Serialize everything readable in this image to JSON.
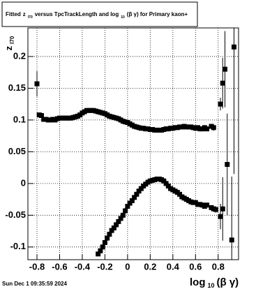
{
  "chart_data": {
    "type": "scatter",
    "title_parts": [
      "Fitted",
      "z",
      "I70",
      "versus TpcTrackLength and log",
      "10",
      "(β γ) for Primary kaon+"
    ],
    "ylabel_parts": [
      "z",
      "I70"
    ],
    "xlabel_parts": [
      "log",
      "10",
      "(β γ)"
    ],
    "footer": "Sun Dec  1 09:35:59 2024",
    "xlim": [
      -0.88,
      0.98
    ],
    "ylim": [
      -0.12,
      0.245
    ],
    "xticks": [
      -0.8,
      -0.6,
      -0.4,
      -0.2,
      0,
      0.2,
      0.4,
      0.6,
      0.8
    ],
    "yticks": [
      -0.1,
      -0.05,
      0,
      0.05,
      0.1,
      0.15,
      0.2
    ],
    "grid": true,
    "series": [
      {
        "color": "#000000",
        "x": [
          -0.8,
          -0.78,
          -0.76,
          -0.74,
          -0.72,
          -0.7,
          -0.68,
          -0.66,
          -0.64,
          -0.62,
          -0.6,
          -0.58,
          -0.56,
          -0.54,
          -0.52,
          -0.5,
          -0.48,
          -0.46,
          -0.44,
          -0.42,
          -0.4,
          -0.38,
          -0.36,
          -0.34,
          -0.32,
          -0.3,
          -0.28,
          -0.26,
          -0.24,
          -0.22,
          -0.2,
          -0.18,
          -0.16,
          -0.14,
          -0.12,
          -0.1,
          -0.08,
          -0.06,
          -0.04,
          -0.02,
          0,
          0.02,
          0.04,
          0.06,
          0.08,
          0.1,
          0.12,
          0.14,
          0.16,
          0.18,
          0.2,
          0.22,
          0.24,
          0.26,
          0.28,
          0.3,
          0.32,
          0.34,
          0.36,
          0.38,
          0.4,
          0.42,
          0.44,
          0.46,
          0.48,
          0.5,
          0.52,
          0.54,
          0.56,
          0.58,
          0.6,
          0.62,
          0.64,
          0.66,
          0.68,
          0.7,
          0.74,
          0.76,
          0.82,
          0.84,
          0.86,
          0.94
        ],
        "values": [
          0.157,
          0.108,
          0.107,
          0.101,
          0.101,
          0.1,
          0.1,
          0.101,
          0.1,
          0.102,
          0.103,
          0.103,
          0.103,
          0.103,
          0.103,
          0.103,
          0.104,
          0.105,
          0.106,
          0.108,
          0.111,
          0.113,
          0.115,
          0.115,
          0.115,
          0.115,
          0.114,
          0.113,
          0.112,
          0.111,
          0.11,
          0.108,
          0.106,
          0.105,
          0.104,
          0.103,
          0.102,
          0.1,
          0.098,
          0.097,
          0.096,
          0.094,
          0.092,
          0.09,
          0.089,
          0.088,
          0.087,
          0.087,
          0.086,
          0.086,
          0.085,
          0.085,
          0.084,
          0.084,
          0.084,
          0.084,
          0.085,
          0.086,
          0.086,
          0.087,
          0.087,
          0.088,
          0.088,
          0.089,
          0.089,
          0.09,
          0.089,
          0.089,
          0.089,
          0.088,
          0.087,
          0.088,
          0.086,
          0.086,
          0.088,
          0.086,
          0.09,
          0.088,
          0.125,
          0.158,
          0.18,
          0.215
        ],
        "errors": [
          0.02,
          0.003,
          0.003,
          0.002,
          0.002,
          0.002,
          0.002,
          0.002,
          0.002,
          0.002,
          0.002,
          0.002,
          0.002,
          0.002,
          0.002,
          0.002,
          0.002,
          0.002,
          0.002,
          0.002,
          0.002,
          0.002,
          0.002,
          0.002,
          0.002,
          0.002,
          0.002,
          0.002,
          0.002,
          0.002,
          0.002,
          0.002,
          0.002,
          0.002,
          0.002,
          0.002,
          0.002,
          0.002,
          0.002,
          0.002,
          0.002,
          0.002,
          0.002,
          0.002,
          0.002,
          0.002,
          0.002,
          0.002,
          0.002,
          0.002,
          0.002,
          0.002,
          0.002,
          0.002,
          0.002,
          0.002,
          0.002,
          0.002,
          0.002,
          0.002,
          0.002,
          0.002,
          0.002,
          0.002,
          0.002,
          0.002,
          0.002,
          0.002,
          0.002,
          0.002,
          0.002,
          0.002,
          0.002,
          0.002,
          0.002,
          0.002,
          0.003,
          0.005,
          0.01,
          0.04,
          0.06,
          0.2
        ]
      },
      {
        "color": "#000000",
        "x": [
          -0.26,
          -0.24,
          -0.22,
          -0.2,
          -0.18,
          -0.16,
          -0.14,
          -0.12,
          -0.1,
          -0.08,
          -0.06,
          -0.04,
          -0.02,
          0,
          0.02,
          0.04,
          0.06,
          0.08,
          0.1,
          0.12,
          0.14,
          0.16,
          0.18,
          0.2,
          0.22,
          0.24,
          0.26,
          0.28,
          0.3,
          0.32,
          0.34,
          0.36,
          0.38,
          0.4,
          0.42,
          0.44,
          0.46,
          0.48,
          0.5,
          0.52,
          0.54,
          0.56,
          0.58,
          0.6,
          0.62,
          0.64,
          0.66,
          0.68,
          0.7,
          0.74,
          0.76,
          0.78,
          0.82,
          0.84,
          0.88,
          0.92
        ],
        "values": [
          -0.111,
          -0.106,
          -0.1,
          -0.093,
          -0.086,
          -0.08,
          -0.074,
          -0.07,
          -0.065,
          -0.06,
          -0.055,
          -0.05,
          -0.043,
          -0.036,
          -0.031,
          -0.027,
          -0.022,
          -0.017,
          -0.012,
          -0.008,
          -0.004,
          -0.001,
          0.002,
          0.004,
          0.005,
          0.006,
          0.007,
          0.007,
          0.006,
          0.004,
          0,
          -0.004,
          -0.008,
          -0.01,
          -0.012,
          -0.014,
          -0.017,
          -0.021,
          -0.023,
          -0.025,
          -0.027,
          -0.029,
          -0.03,
          -0.03,
          -0.033,
          -0.033,
          -0.034,
          -0.036,
          -0.034,
          -0.038,
          -0.04,
          -0.041,
          -0.052,
          -0.04,
          0.03,
          -0.089
        ],
        "errors": [
          0.003,
          0.002,
          0.002,
          0.002,
          0.002,
          0.002,
          0.002,
          0.002,
          0.002,
          0.002,
          0.002,
          0.002,
          0.002,
          0.002,
          0.002,
          0.002,
          0.002,
          0.002,
          0.002,
          0.002,
          0.002,
          0.002,
          0.002,
          0.002,
          0.002,
          0.002,
          0.002,
          0.002,
          0.002,
          0.002,
          0.002,
          0.002,
          0.002,
          0.002,
          0.002,
          0.002,
          0.002,
          0.002,
          0.002,
          0.002,
          0.002,
          0.002,
          0.002,
          0.002,
          0.002,
          0.002,
          0.002,
          0.002,
          0.002,
          0.003,
          0.004,
          0.005,
          0.02,
          0.05,
          0.08,
          0.1
        ]
      }
    ]
  }
}
